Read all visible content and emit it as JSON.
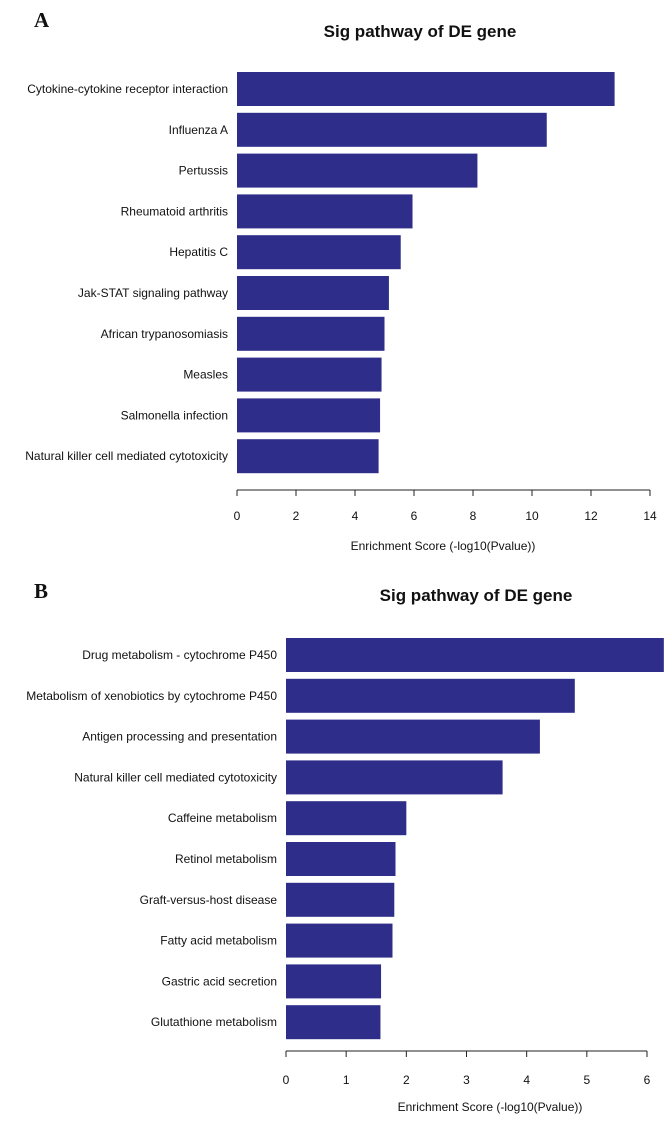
{
  "bar_color": "#2e2e8a",
  "chart_data": [
    {
      "panel": "A",
      "type": "bar",
      "orientation": "horizontal",
      "title": "Sig pathway of DE gene",
      "xlabel": "Enrichment Score (-log10(Pvalue))",
      "ylabel": "",
      "xlim": [
        0,
        14
      ],
      "xticks": [
        0,
        2,
        4,
        6,
        8,
        10,
        12,
        14
      ],
      "categories": [
        "Cytokine-cytokine receptor interaction",
        "Influenza A",
        "Pertussis",
        "Rheumatoid arthritis",
        "Hepatitis C",
        "Jak-STAT signaling pathway",
        "African trypanosomiasis",
        "Measles",
        "Salmonella infection",
        "Natural killer cell mediated cytotoxicity"
      ],
      "values": [
        12.8,
        10.5,
        8.15,
        5.95,
        5.55,
        5.15,
        5.0,
        4.9,
        4.85,
        4.8
      ]
    },
    {
      "panel": "B",
      "type": "bar",
      "orientation": "horizontal",
      "title": "Sig pathway of DE gene",
      "xlabel": "Enrichment Score (-log10(Pvalue))",
      "ylabel": "",
      "xlim": [
        0,
        6
      ],
      "xticks": [
        0,
        1,
        2,
        3,
        4,
        5,
        6
      ],
      "categories": [
        "Drug metabolism - cytochrome P450",
        "Metabolism of xenobiotics by cytochrome P450",
        "Antigen processing and presentation",
        "Natural killer cell mediated cytotoxicity",
        "Caffeine metabolism",
        "Retinol metabolism",
        "Graft-versus-host disease",
        "Fatty acid metabolism",
        "Gastric acid secretion",
        "Glutathione metabolism"
      ],
      "values": [
        6.28,
        4.8,
        4.22,
        3.6,
        2.0,
        1.82,
        1.8,
        1.77,
        1.58,
        1.57
      ]
    }
  ]
}
